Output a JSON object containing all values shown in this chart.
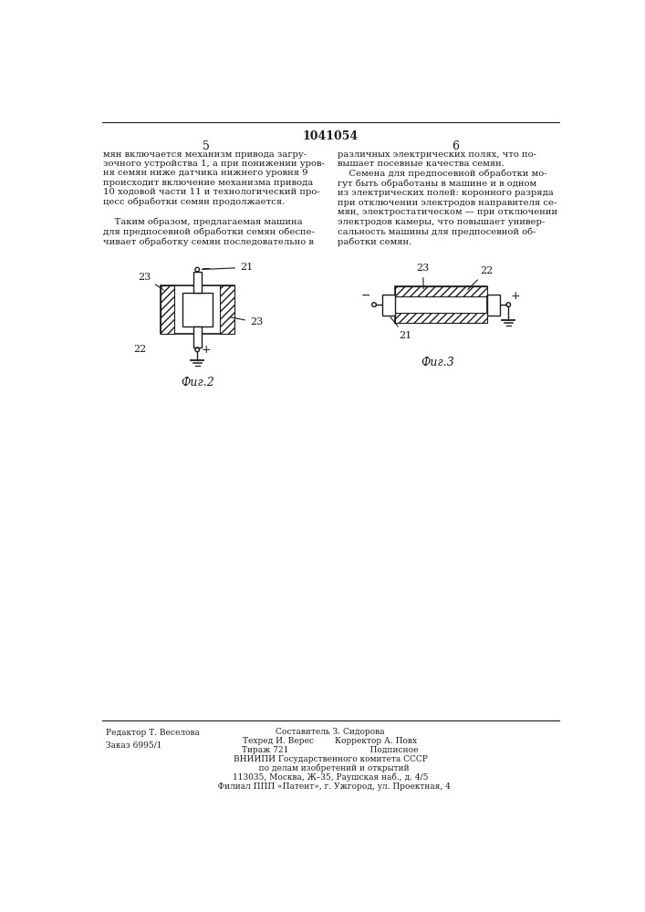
{
  "page_title": "1041054",
  "col_left_num": "5",
  "col_right_num": "6",
  "left_text": "мян включается механизм привода загру-\nзочного устройства 1, а при понижении уров-\nня семян ниже датчика нижнего уровня 9\nпроисходит включение механизма привода\n10 ходовой части 11 и технологический про-\nцесс обработки семян продолжается.\n\n    Таким образом, предлагаемая машина\nдля предпосевной обработки семян обеспе-\nчивает обработку семян последовательно в",
  "right_text": "различных электрических полях, что по-\nвышает посевные качества семян.\n    Семена для предпосевной обработки мо-\nгут быть обработаны в машине и в одном\nиз электрических полей: коронного разряда\nпри отключении электродов направителя се-\nмян, электростатическом — при отключении\nэлектродов камеры, что повышает универ-\nсальность машины для предпосевной об-\nработки семян.",
  "fig2_label": "Фиг.2",
  "fig3_label": "Фиг.3",
  "bottom_left_text": "Редактор Т. Веселова\nЗаказ 6995/1",
  "bottom_center_line1": "Составитель З. Сидорова",
  "bottom_center_line2": "Техред И. Верес        Корректор А. Повх",
  "bottom_center_line3": "Тираж 721                               Подписное",
  "bottom_center_line4": "ВНИИПИ Государственного комитета СССР",
  "bottom_center_line5": "   по делам изобретений и открытий",
  "bottom_center_line6": "113035, Москва, Ж–35, Раушская наб., д. 4/5",
  "bottom_center_line7": "   Филиал ППП «Патент», г. Ужгород, ул. Проектная, 4",
  "bg_color": "#ffffff",
  "text_color": "#1a1a1a",
  "line_color": "#1a1a1a"
}
